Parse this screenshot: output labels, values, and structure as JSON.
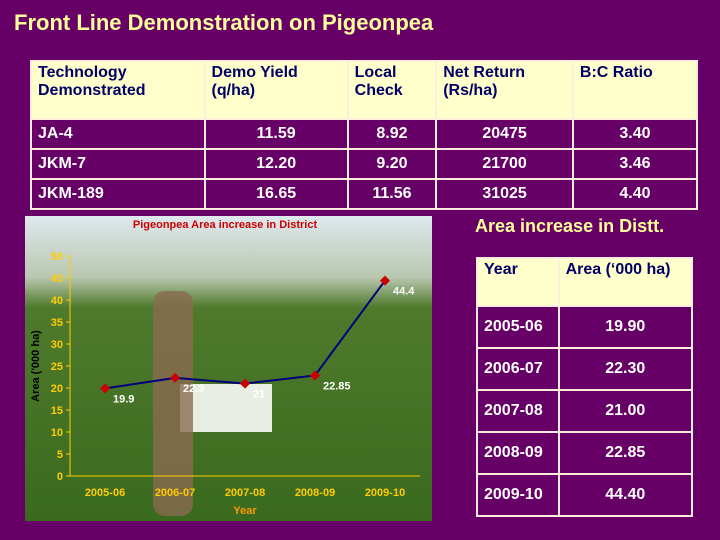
{
  "title": "Front Line Demonstration on Pigeonpea",
  "table": {
    "header": [
      "Technology\nDemonstrated",
      "Demo Yield\n(q/ha)",
      "Local\nCheck",
      "Net Return\n(Rs/ha)",
      "B:C Ratio"
    ],
    "rows": [
      [
        "JA-4",
        "11.59",
        "8.92",
        "20475",
        "3.40"
      ],
      [
        "JKM-7",
        "12.20",
        "9.20",
        "21700",
        "3.46"
      ],
      [
        "JKM-189",
        "16.65",
        "11.56",
        "31025",
        "4.40"
      ]
    ]
  },
  "chart_data": {
    "type": "line",
    "title": "Pigeonpea Area increase in District",
    "x_label": "Year",
    "y_label": "Area ('000 ha)",
    "categories": [
      "2005-06",
      "2006-07",
      "2007-08",
      "2008-09",
      "2009-10"
    ],
    "series": [
      {
        "name": "Area",
        "color": "#00007f",
        "marker_color": "#cc0000",
        "values": [
          19.9,
          22.3,
          21,
          22.85,
          44.4
        ]
      }
    ],
    "ylim": [
      0,
      50
    ],
    "yticks": [
      0,
      5,
      10,
      15,
      20,
      25,
      30,
      35,
      40,
      45,
      50
    ]
  },
  "side": {
    "title": "Area increase in Distt.",
    "table": {
      "header": [
        "Year",
        "Area (‘000 ha)"
      ],
      "rows": [
        [
          "2005-06",
          "19.90"
        ],
        [
          "2006-07",
          "22.30"
        ],
        [
          "2007-08",
          "21.00"
        ],
        [
          "2008-09",
          "22.85"
        ],
        [
          "2009-10",
          "44.40"
        ]
      ]
    }
  }
}
